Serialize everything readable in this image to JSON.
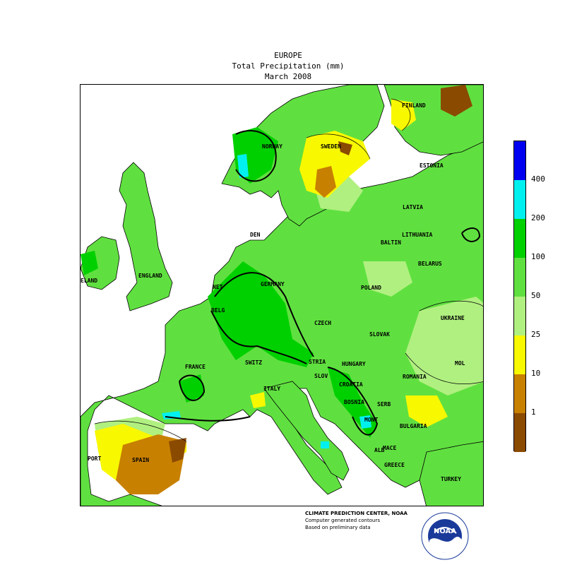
{
  "header": {
    "region": "EUROPE",
    "variable": "Total Precipitation (mm)",
    "period": "March 2008"
  },
  "legend": {
    "colors": [
      "#0000f0",
      "#00f0f0",
      "#00d000",
      "#60e040",
      "#b0f080",
      "#f8f800",
      "#c88000",
      "#8a4a00"
    ],
    "labels": [
      "400",
      "200",
      "100",
      "50",
      "25",
      "10",
      "1"
    ]
  },
  "countries": [
    "NORWAY",
    "SWEDEN",
    "FINLAND",
    "ESTONIA",
    "LATVIA",
    "LITHUANIA",
    "BELARUS",
    "DEN",
    "BALTIN",
    "ENGLAND",
    "ELAND",
    "NET",
    "BELG",
    "GERMANY",
    "POLAND",
    "UKRAINE",
    "CZECH",
    "SLOVAK",
    "FRANCE",
    "SWITZ",
    "STRIA",
    "HUNGARY",
    "MOL",
    "ROMANIA",
    "SLOV",
    "CROATIA",
    "BOSNIA",
    "SERB",
    "MONT",
    "BULGARIA",
    "ITALY",
    "SPAIN",
    "PORT",
    "MACE",
    "ALB",
    "GREECE",
    "TURKEY"
  ],
  "credits": {
    "line1": "CLIMATE PREDICTION CENTER, NOAA",
    "line2": "Computer generated contours",
    "line3": "Based on preliminary data"
  },
  "logo": {
    "text": "NOAA"
  }
}
